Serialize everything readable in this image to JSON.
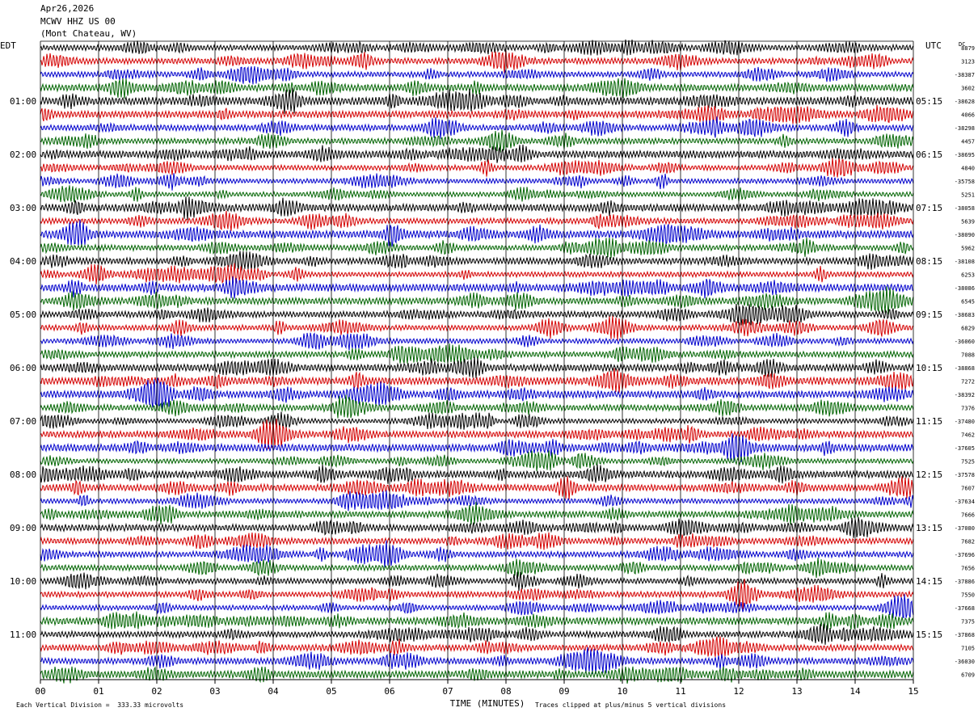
{
  "header": {
    "date": "Apr26,2026",
    "station": "MCWV HHZ US 00",
    "location": "(Mont Chateau, WV)"
  },
  "left_tz": "EDT",
  "right_tz": "UTC",
  "dc_label": "DC",
  "x_axis_title": "TIME (MINUTES)",
  "footer": {
    "scale": "Each Vertical Division =  333.33 microvolts",
    "clip": "Traces clipped at plus/minus 5 vertical divisions"
  },
  "colors": {
    "trace": [
      "#000000",
      "#d40000",
      "#0000cc",
      "#006400"
    ],
    "grid": "#000000"
  },
  "chart_data": {
    "type": "line",
    "title": "MCWV HHZ US 00",
    "xlabel": "TIME (MINUTES)",
    "xlim": [
      0,
      15
    ],
    "x_ticks": [
      "00",
      "01",
      "02",
      "03",
      "04",
      "05",
      "06",
      "07",
      "08",
      "09",
      "10",
      "11",
      "12",
      "13",
      "14",
      "15"
    ],
    "rows_per_hour": 4,
    "minutes_per_row": 15,
    "left_hour_labels": [
      "01:00",
      "02:00",
      "03:00",
      "04:00",
      "05:00",
      "06:00",
      "07:00",
      "08:00",
      "09:00",
      "10:00",
      "11:00"
    ],
    "right_hour_labels": [
      "05:15",
      "06:15",
      "07:15",
      "08:15",
      "09:15",
      "10:15",
      "11:15",
      "12:15",
      "13:15",
      "14:15",
      "15:15"
    ],
    "dc_offsets": [
      "8879",
      "3123",
      "-38387",
      "3602",
      "-38628",
      "4066",
      "-38298",
      "4457",
      "-38695",
      "4840",
      "-35758",
      "5251",
      "-38058",
      "5639",
      "-38090",
      "5962",
      "-38108",
      "6253",
      "-38086",
      "6545",
      "-38683",
      "6829",
      "-36060",
      "7088",
      "-38868",
      "7272",
      "-38392",
      "7376",
      "-37480",
      "7462",
      "-37605",
      "7525",
      "-37578",
      "7607",
      "-37634",
      "7666",
      "-37080",
      "7682",
      "-37696",
      "7656",
      "-37886",
      "7550",
      "-37668",
      "7375",
      "-37868",
      "7105",
      "-36030",
      "6709"
    ],
    "amplitude_divisions": 0.55,
    "clip_divisions": 5
  }
}
